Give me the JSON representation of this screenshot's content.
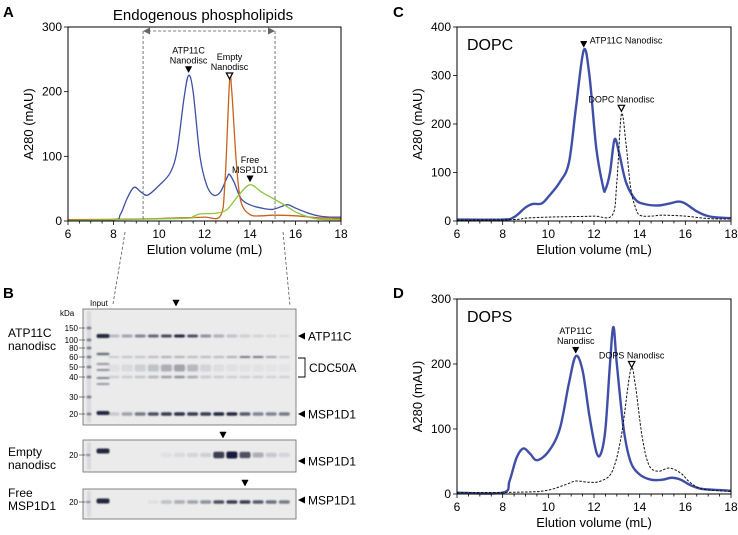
{
  "panels": {
    "A": "A",
    "B": "B",
    "C": "C",
    "D": "D"
  },
  "chart_data": [
    {
      "id": "A",
      "type": "line",
      "title": "Endogenous phospholipids",
      "xlabel": "Elution volume (mL)",
      "ylabel": "A280 (mAU)",
      "xlim": [
        6,
        18
      ],
      "ylim": [
        0,
        300
      ],
      "xticks": [
        6,
        8,
        10,
        12,
        14,
        16,
        18
      ],
      "yticks": [
        0,
        100,
        200,
        300
      ],
      "fraction_range_mL": [
        9.3,
        15.1
      ],
      "series": [
        {
          "name": "ATP11C nanodisc",
          "color": "#3f4fa8",
          "style": "solid",
          "x": [
            6,
            8,
            8.3,
            8.6,
            8.9,
            9.2,
            9.5,
            10,
            10.5,
            10.8,
            11.1,
            11.3,
            11.5,
            11.8,
            12.1,
            12.4,
            12.7,
            13,
            13.1,
            13.3,
            13.6,
            14,
            14.5,
            15,
            15.5,
            15.7,
            16,
            16.5,
            17,
            17.5,
            18
          ],
          "y": [
            2,
            2,
            10,
            35,
            52,
            45,
            40,
            55,
            75,
            110,
            190,
            225,
            200,
            100,
            55,
            40,
            45,
            68,
            72,
            60,
            35,
            25,
            20,
            18,
            24,
            25,
            20,
            13,
            8,
            6,
            6
          ]
        },
        {
          "name": "Empty nanodisc",
          "color": "#c8621e",
          "style": "solid",
          "x": [
            6,
            9,
            11,
            12,
            12.7,
            12.9,
            13.1,
            13.2,
            13.4,
            13.6,
            14,
            14.5,
            15,
            16,
            17,
            18
          ],
          "y": [
            2,
            3,
            5,
            6,
            8,
            60,
            215,
            200,
            90,
            30,
            10,
            8,
            9,
            8,
            5,
            4
          ]
        },
        {
          "name": "Free MSP1D1",
          "color": "#8dc63f",
          "style": "solid",
          "x": [
            6,
            11,
            11.5,
            11.8,
            12.5,
            13,
            13.5,
            14,
            14.5,
            15,
            15.5,
            16,
            16.5,
            17,
            18
          ],
          "y": [
            1,
            4,
            7,
            11,
            12,
            18,
            40,
            56,
            45,
            35,
            25,
            14,
            7,
            3,
            2
          ]
        }
      ],
      "annotations": [
        {
          "lines": [
            "ATP11C",
            "Nanodisc"
          ],
          "x": 11.3,
          "y": 225,
          "marker": "filled"
        },
        {
          "lines": [
            "Empty",
            "Nanodisc"
          ],
          "x": 13.1,
          "y": 215,
          "marker": "open"
        },
        {
          "lines": [
            "Free",
            "MSP1D1"
          ],
          "x": 14.0,
          "y": 56,
          "marker": "filled"
        }
      ]
    },
    {
      "id": "C",
      "type": "line",
      "inset_label": "DOPC",
      "xlabel": "Elution volume (mL)",
      "ylabel": "A280 (mAU)",
      "xlim": [
        6,
        18
      ],
      "ylim": [
        0,
        400
      ],
      "xticks": [
        6,
        8,
        10,
        12,
        14,
        16,
        18
      ],
      "yticks": [
        0,
        100,
        200,
        300,
        400
      ],
      "series": [
        {
          "name": "ATP11C nanodisc",
          "color": "#3f4fa8",
          "style": "solid",
          "x": [
            6,
            8,
            8.5,
            9,
            9.3,
            9.7,
            10,
            10.5,
            10.9,
            11.2,
            11.55,
            11.8,
            12.1,
            12.4,
            12.5,
            12.7,
            12.9,
            13.1,
            13.4,
            13.8,
            14.2,
            14.8,
            15.3,
            15.7,
            16,
            16.5,
            17,
            17.5,
            18
          ],
          "y": [
            3,
            3,
            8,
            28,
            35,
            36,
            50,
            80,
            120,
            230,
            352,
            300,
            150,
            70,
            65,
            100,
            168,
            140,
            80,
            45,
            35,
            32,
            36,
            40,
            36,
            20,
            10,
            7,
            6
          ]
        },
        {
          "name": "DOPC nanodisc",
          "color": "#111111",
          "style": "dashed",
          "x": [
            6,
            8.5,
            9,
            10,
            11,
            12,
            12.8,
            13,
            13.2,
            13.4,
            13.6,
            13.8,
            14,
            14.5,
            15,
            16,
            17,
            18
          ],
          "y": [
            2,
            3,
            6,
            8,
            9,
            10,
            12,
            80,
            220,
            160,
            70,
            30,
            12,
            10,
            12,
            10,
            5,
            4
          ]
        }
      ],
      "annotations": [
        {
          "lines": [
            "ATP11C Nanodisc"
          ],
          "x": 11.55,
          "y": 352,
          "marker": "filled",
          "side": "right"
        },
        {
          "lines": [
            "DOPC Nanodisc"
          ],
          "x": 13.2,
          "y": 220,
          "marker": "open"
        }
      ]
    },
    {
      "id": "D",
      "type": "line",
      "inset_label": "DOPS",
      "xlabel": "Elution volume (mL)",
      "ylabel": "A280 (mAU)",
      "xlim": [
        6,
        18
      ],
      "ylim": [
        0,
        300
      ],
      "xticks": [
        6,
        8,
        10,
        12,
        14,
        16,
        18
      ],
      "yticks": [
        0,
        100,
        200,
        300
      ],
      "series": [
        {
          "name": "ATP11C nanodisc",
          "color": "#3f4fa8",
          "style": "solid",
          "x": [
            6,
            8,
            8.3,
            8.6,
            8.9,
            9.2,
            9.5,
            10,
            10.5,
            10.9,
            11.2,
            11.5,
            11.8,
            12.1,
            12.3,
            12.5,
            12.7,
            12.85,
            13,
            13.3,
            13.6,
            14,
            14.5,
            15,
            15.4,
            15.8,
            16.2,
            16.7,
            17.5,
            18
          ],
          "y": [
            2,
            2,
            20,
            55,
            70,
            62,
            52,
            65,
            100,
            170,
            212,
            190,
            120,
            65,
            62,
            100,
            200,
            257,
            200,
            100,
            50,
            30,
            22,
            22,
            25,
            22,
            14,
            8,
            6,
            5
          ]
        },
        {
          "name": "DOPS nanodisc",
          "color": "#111111",
          "style": "dashed",
          "x": [
            6,
            9,
            10,
            10.8,
            11.2,
            11.8,
            12.3,
            12.8,
            13.2,
            13.6,
            13.8,
            14.1,
            14.4,
            14.8,
            15.3,
            15.8,
            16.2,
            16.7,
            17.5,
            18
          ],
          "y": [
            2,
            3,
            6,
            15,
            20,
            18,
            20,
            35,
            90,
            190,
            170,
            90,
            45,
            35,
            40,
            32,
            18,
            8,
            5,
            4
          ]
        }
      ],
      "annotations": [
        {
          "lines": [
            "ATP11C",
            "Nanodisc"
          ],
          "x": 11.2,
          "y": 212,
          "marker": "filled"
        },
        {
          "lines": [
            "DOPS Nanodisc"
          ],
          "x": 13.65,
          "y": 190,
          "marker": "open"
        }
      ]
    }
  ],
  "gels": {
    "input_label": "Input",
    "kda_label": "kDa",
    "main": {
      "row_label": [
        "ATP11C",
        "nanodisc"
      ],
      "markers": [
        "150",
        "100",
        "80",
        "60",
        "50",
        "40",
        "30",
        "20"
      ],
      "right_labels": {
        "atp11c": "ATP11C",
        "cdc50a": "CDC50A",
        "msp": "MSP1D1"
      }
    },
    "empty": {
      "row_label": [
        "Empty",
        "nanodisc"
      ],
      "marker": "20",
      "right_label": "MSP1D1"
    },
    "free": {
      "row_label": [
        "Free",
        "MSP1D1"
      ],
      "marker": "20",
      "right_label": "MSP1D1"
    }
  }
}
